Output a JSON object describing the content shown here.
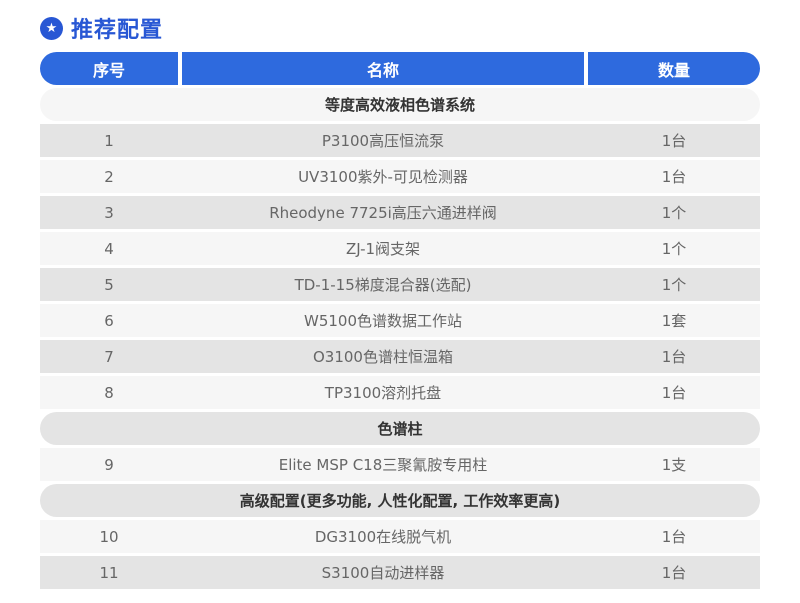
{
  "page": {
    "title": "推荐配置"
  },
  "colors": {
    "accent": "#2857d4",
    "header_bg": "#2e6ade",
    "row_dark": "#e4e4e4",
    "row_light": "#f6f6f6",
    "item_text": "#666666",
    "section_text": "#333333"
  },
  "icons": {
    "title_icon": "star-badge-icon",
    "title_icon_glyph": "★"
  },
  "table": {
    "headers": [
      "序号",
      "名称",
      "数量"
    ],
    "rows": [
      {
        "type": "section",
        "label": "等度高效液相色谱系统"
      },
      {
        "type": "item",
        "no": "1",
        "name": "P3100高压恒流泵",
        "qty": "1台"
      },
      {
        "type": "item",
        "no": "2",
        "name": "UV3100紫外-可见检测器",
        "qty": "1台"
      },
      {
        "type": "item",
        "no": "3",
        "name": "Rheodyne 7725i高压六通进样阀",
        "qty": "1个"
      },
      {
        "type": "item",
        "no": "4",
        "name": "ZJ-1阀支架",
        "qty": "1个"
      },
      {
        "type": "item",
        "no": "5",
        "name": "TD-1-15梯度混合器(选配)",
        "qty": "1个"
      },
      {
        "type": "item",
        "no": "6",
        "name": "W5100色谱数据工作站",
        "qty": "1套"
      },
      {
        "type": "item",
        "no": "7",
        "name": "O3100色谱柱恒温箱",
        "qty": "1台"
      },
      {
        "type": "item",
        "no": "8",
        "name": "TP3100溶剂托盘",
        "qty": "1台"
      },
      {
        "type": "section",
        "label": "色谱柱"
      },
      {
        "type": "item",
        "no": "9",
        "name": "Elite MSP C18三聚氰胺专用柱",
        "qty": "1支"
      },
      {
        "type": "section",
        "label": "高级配置(更多功能, 人性化配置, 工作效率更高)"
      },
      {
        "type": "item",
        "no": "10",
        "name": "DG3100在线脱气机",
        "qty": "1台"
      },
      {
        "type": "item",
        "no": "11",
        "name": "S3100自动进样器",
        "qty": "1台"
      }
    ]
  }
}
